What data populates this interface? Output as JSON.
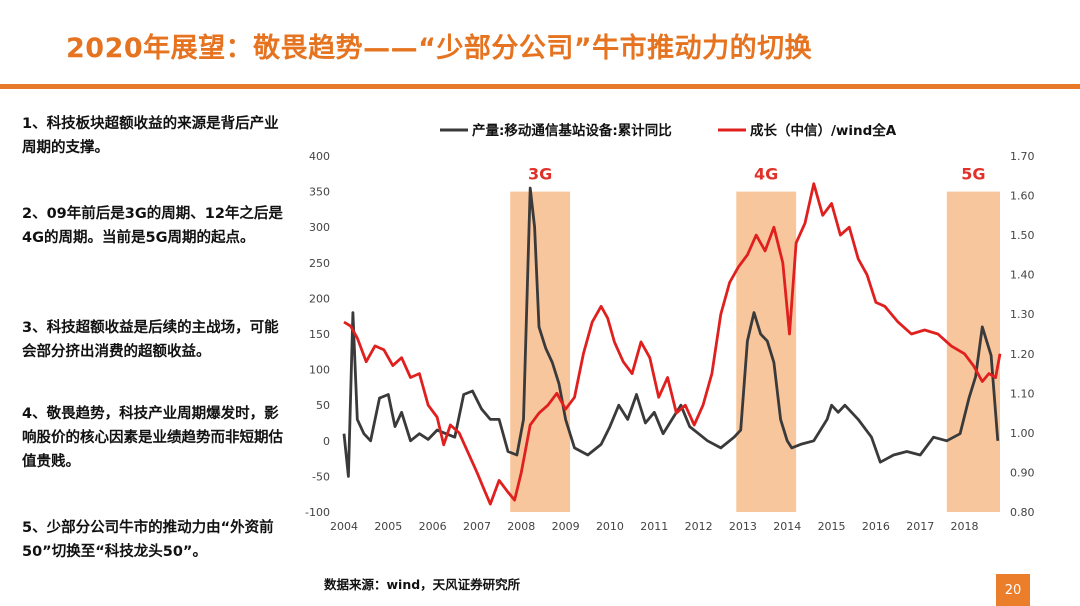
{
  "slide": {
    "title": "2020年展望：敬畏趋势——“少部分公司”牛市推动力的切换",
    "page_number": "20",
    "source": "数据来源：wind，天风证券研究所"
  },
  "points": [
    "1、科技板块超额收益的来源是背后产业周期的支撑。",
    "2、09年前后是3G的周期、12年之后是4G的周期。当前是5G周期的起点。",
    "3、科技超额收益是后续的主战场，可能会部分挤出消费的超额收益。",
    "4、敬畏趋势，科技产业周期爆发时，影响股价的核心因素是业绩趋势而非短期估值贵贱。",
    "5、少部分公司牛市的推动力由“外资前50”切换至“科技龙头50”。"
  ],
  "colors": {
    "title": "#e5731f",
    "rule": "#e8792a",
    "series_output": "#3a3a3a",
    "series_growth": "#e0201e",
    "band": "#f8c69d",
    "gen_label": "#e0322a"
  },
  "chart_data": {
    "type": "line",
    "legend_position": "top",
    "grid": false,
    "x_ticks": [
      "2004",
      "2005",
      "2006",
      "2007",
      "2008",
      "2009",
      "2010",
      "2011",
      "2012",
      "2013",
      "2014",
      "2015",
      "2016",
      "2017",
      "2018"
    ],
    "xlim": [
      2004,
      2018.8
    ],
    "y_left": {
      "lim": [
        -100,
        400
      ],
      "ticks": [
        "-100",
        "-50",
        "0",
        "50",
        "100",
        "150",
        "200",
        "250",
        "300",
        "350",
        "400"
      ]
    },
    "y_right": {
      "lim": [
        0.8,
        1.7
      ],
      "ticks": [
        "0.80",
        "0.90",
        "1.00",
        "1.10",
        "1.20",
        "1.30",
        "1.40",
        "1.50",
        "1.60",
        "1.70"
      ]
    },
    "bands": [
      {
        "label": "3G",
        "start": 2007.75,
        "end": 2009.1
      },
      {
        "label": "4G",
        "start": 2012.85,
        "end": 2014.2
      },
      {
        "label": "5G",
        "start": 2017.6,
        "end": 2018.85
      }
    ],
    "series": [
      {
        "name": "产量:移动通信基站设备:累计同比",
        "axis": "left",
        "x": [
          2004.0,
          2004.1,
          2004.2,
          2004.3,
          2004.45,
          2004.6,
          2004.8,
          2005.0,
          2005.15,
          2005.3,
          2005.5,
          2005.7,
          2005.9,
          2006.1,
          2006.3,
          2006.5,
          2006.7,
          2006.9,
          2007.1,
          2007.3,
          2007.5,
          2007.7,
          2007.9,
          2008.05,
          2008.2,
          2008.3,
          2008.4,
          2008.55,
          2008.7,
          2008.85,
          2009.0,
          2009.2,
          2009.5,
          2009.8,
          2010.0,
          2010.2,
          2010.4,
          2010.6,
          2010.8,
          2011.0,
          2011.2,
          2011.4,
          2011.6,
          2011.8,
          2012.0,
          2012.2,
          2012.5,
          2012.8,
          2012.95,
          2013.1,
          2013.25,
          2013.4,
          2013.55,
          2013.7,
          2013.85,
          2014.0,
          2014.1,
          2014.3,
          2014.6,
          2014.9,
          2015.0,
          2015.15,
          2015.3,
          2015.6,
          2015.9,
          2016.1,
          2016.4,
          2016.7,
          2017.0,
          2017.3,
          2017.6,
          2017.9,
          2018.1,
          2018.25,
          2018.4,
          2018.6,
          2018.75
        ],
        "values": [
          10,
          -50,
          180,
          30,
          10,
          0,
          60,
          65,
          20,
          40,
          0,
          10,
          2,
          15,
          10,
          5,
          65,
          70,
          45,
          30,
          30,
          -15,
          -20,
          30,
          355,
          300,
          160,
          130,
          110,
          80,
          30,
          -10,
          -20,
          -5,
          20,
          50,
          30,
          65,
          25,
          40,
          10,
          30,
          50,
          20,
          10,
          0,
          -10,
          5,
          15,
          140,
          180,
          150,
          140,
          110,
          30,
          0,
          -10,
          -5,
          0,
          30,
          50,
          40,
          50,
          30,
          5,
          -30,
          -20,
          -15,
          -20,
          5,
          0,
          10,
          60,
          90,
          160,
          120,
          0
        ]
      },
      {
        "name": "成长（中信）/wind全A",
        "axis": "right",
        "x": [
          2004.0,
          2004.15,
          2004.3,
          2004.5,
          2004.7,
          2004.9,
          2005.1,
          2005.3,
          2005.5,
          2005.7,
          2005.9,
          2006.1,
          2006.25,
          2006.4,
          2006.6,
          2006.8,
          2007.0,
          2007.15,
          2007.3,
          2007.5,
          2007.7,
          2007.85,
          2008.0,
          2008.2,
          2008.4,
          2008.6,
          2008.8,
          2009.0,
          2009.2,
          2009.4,
          2009.6,
          2009.8,
          2009.95,
          2010.1,
          2010.3,
          2010.5,
          2010.7,
          2010.9,
          2011.1,
          2011.3,
          2011.5,
          2011.7,
          2011.9,
          2012.1,
          2012.3,
          2012.5,
          2012.7,
          2012.9,
          2013.1,
          2013.3,
          2013.5,
          2013.7,
          2013.9,
          2014.05,
          2014.2,
          2014.4,
          2014.6,
          2014.8,
          2015.0,
          2015.2,
          2015.4,
          2015.6,
          2015.8,
          2016.0,
          2016.2,
          2016.5,
          2016.8,
          2017.1,
          2017.4,
          2017.7,
          2018.0,
          2018.2,
          2018.4,
          2018.55,
          2018.7,
          2018.8
        ],
        "values": [
          1.28,
          1.27,
          1.24,
          1.18,
          1.22,
          1.21,
          1.17,
          1.19,
          1.14,
          1.15,
          1.07,
          1.04,
          0.97,
          1.02,
          1.0,
          0.95,
          0.9,
          0.86,
          0.82,
          0.88,
          0.85,
          0.83,
          0.9,
          1.02,
          1.05,
          1.07,
          1.1,
          1.06,
          1.09,
          1.2,
          1.28,
          1.32,
          1.29,
          1.23,
          1.18,
          1.15,
          1.23,
          1.19,
          1.09,
          1.14,
          1.05,
          1.07,
          1.02,
          1.07,
          1.15,
          1.3,
          1.38,
          1.42,
          1.45,
          1.5,
          1.46,
          1.52,
          1.43,
          1.25,
          1.48,
          1.53,
          1.63,
          1.55,
          1.58,
          1.5,
          1.52,
          1.44,
          1.4,
          1.33,
          1.32,
          1.28,
          1.25,
          1.26,
          1.25,
          1.22,
          1.2,
          1.17,
          1.13,
          1.15,
          1.14,
          1.2
        ]
      }
    ]
  }
}
